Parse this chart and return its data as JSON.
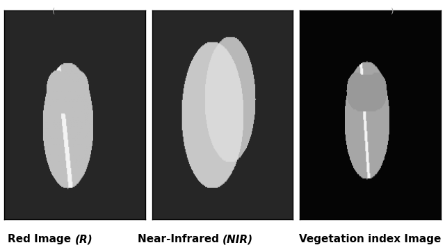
{
  "panels": [
    {
      "label_pre": "Red Image ",
      "label_italic": "(R)",
      "label_post": ""
    },
    {
      "label_pre": "Near-Infrared ",
      "label_italic": "(NIR)",
      "label_post": ""
    },
    {
      "label_pre": "Vegetation index Image",
      "label_italic": "",
      "label_post": ""
    }
  ],
  "background_color": "#ffffff",
  "fig_width": 6.4,
  "fig_height": 3.63,
  "label_fontsize": 11,
  "top_text_color": "#aaaaaa"
}
